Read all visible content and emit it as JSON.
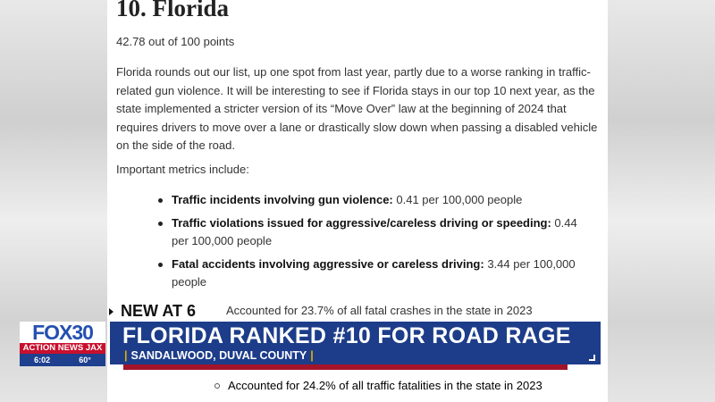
{
  "article": {
    "title": "10. Florida",
    "score": "42.78 out of 100 points",
    "paragraph": "Florida rounds out our list, up one spot from last year, partly due to a worse ranking in traffic-related gun violence. It will be interesting to see if Florida stays in our top 10 next year, as the state implemented a stricter version of its “Move Over” law at the beginning of 2024 that requires drivers to move over a lane or drastically slow down when passing a disabled vehicle on the side of the road.",
    "metrics_intro": "Important metrics include:",
    "metrics": [
      {
        "label": "Traffic incidents involving gun violence:",
        "value": " 0.41 per 100,000 people"
      },
      {
        "label": "Traffic violations issued for aggressive/careless driving or speeding:",
        "value": " 0.44 per 100,000 people"
      },
      {
        "label": "Fatal accidents involving aggressive or careless driving:",
        "value": " 3.44 per 100,000 people"
      }
    ],
    "sub_items": [
      "Accounted for 23.7% of all fatal crashes in the state in 2023",
      "Accounted for 24.2% of all traffic fatalities in the state in 2023"
    ]
  },
  "broadcast": {
    "tag": "NEW AT 6",
    "headline": "FLORIDA RANKED #10 FOR ROAD RAGE",
    "location": "SANDALWOOD, DUVAL COUNTY",
    "logo": {
      "station": "FOX30",
      "brand": "ACTION NEWS JAX",
      "time": "6:02",
      "temp": "60°"
    },
    "colors": {
      "bar": "#1d3d8a",
      "accent": "#a3142a",
      "pipe": "#e2b100"
    }
  }
}
